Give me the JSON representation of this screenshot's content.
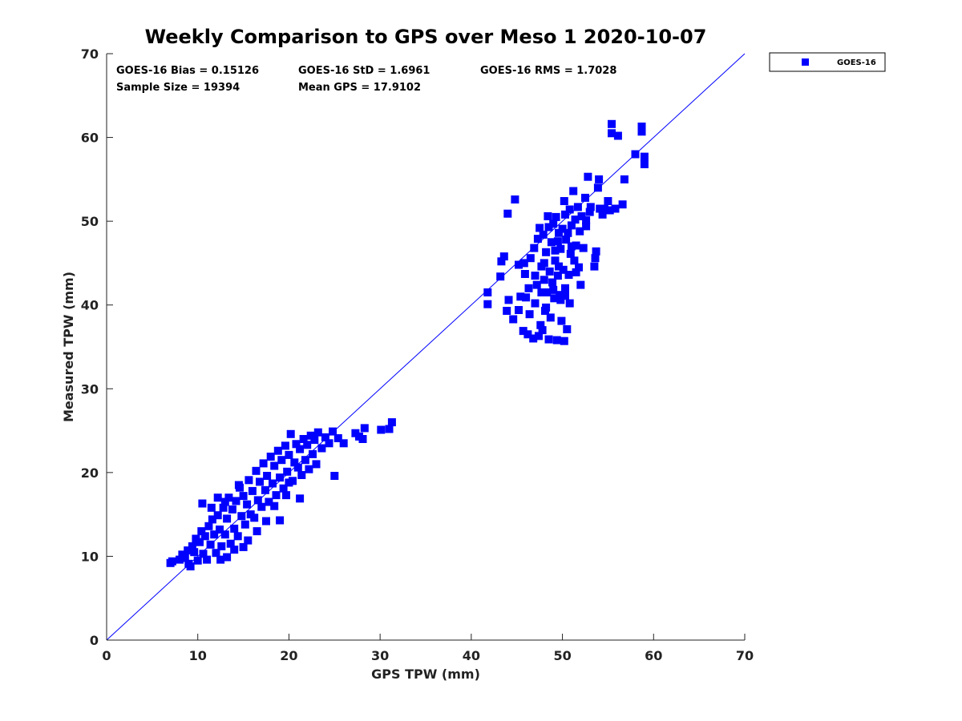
{
  "chart_data": {
    "type": "scatter",
    "title": "Weekly Comparison to GPS over Meso 1 2020-10-07",
    "xlabel": "GPS TPW (mm)",
    "ylabel": "Measured TPW (mm)",
    "xlim": [
      0,
      70
    ],
    "ylim": [
      0,
      70
    ],
    "xticks": [
      "0",
      "10",
      "20",
      "30",
      "40",
      "50",
      "60",
      "70"
    ],
    "yticks": [
      "0",
      "10",
      "20",
      "30",
      "40",
      "50",
      "60",
      "70"
    ],
    "grid": false,
    "legend_position": "outside top-right",
    "reference_line": {
      "x": [
        0,
        70
      ],
      "y": [
        0,
        70
      ],
      "color": "#0000ff"
    },
    "stats": [
      "GOES-16 Bias = 0.15126",
      "GOES-16 StD = 1.6961",
      "GOES-16 RMS = 1.7028",
      "Sample Size = 19394",
      "Mean GPS = 17.9102"
    ],
    "series": [
      {
        "name": "GOES-16",
        "color": "#0000ff",
        "marker": "square",
        "points": [
          [
            7,
            9.2
          ],
          [
            7.2,
            9.4
          ],
          [
            8,
            9.6
          ],
          [
            8.3,
            10.2
          ],
          [
            8.6,
            9.8
          ],
          [
            8.9,
            10.7
          ],
          [
            9,
            9.1
          ],
          [
            9.2,
            8.8
          ],
          [
            9.4,
            11.2
          ],
          [
            9.6,
            10.5
          ],
          [
            9.8,
            12.1
          ],
          [
            10,
            9.5
          ],
          [
            10.2,
            11.7
          ],
          [
            10.4,
            13
          ],
          [
            10.6,
            10.3
          ],
          [
            10.8,
            12.4
          ],
          [
            11,
            9.6
          ],
          [
            11.2,
            13.6
          ],
          [
            11.4,
            11.4
          ],
          [
            11.6,
            14.4
          ],
          [
            11.8,
            12.6
          ],
          [
            12,
            10.4
          ],
          [
            12.2,
            14.9
          ],
          [
            12.4,
            13.2
          ],
          [
            12.6,
            11.2
          ],
          [
            12.8,
            15.8
          ],
          [
            13,
            12.6
          ],
          [
            13.2,
            14.5
          ],
          [
            13.4,
            17
          ],
          [
            13.6,
            11.5
          ],
          [
            13.8,
            15.6
          ],
          [
            14,
            13.3
          ],
          [
            14.2,
            16.6
          ],
          [
            14.4,
            12.4
          ],
          [
            14.6,
            18.2
          ],
          [
            14.8,
            14.8
          ],
          [
            15,
            17.2
          ],
          [
            15.2,
            13.8
          ],
          [
            15.4,
            16.2
          ],
          [
            15.6,
            19.1
          ],
          [
            15.8,
            15
          ],
          [
            16,
            17.8
          ],
          [
            16.2,
            14.6
          ],
          [
            16.4,
            20.2
          ],
          [
            16.6,
            16.7
          ],
          [
            16.8,
            18.9
          ],
          [
            17,
            15.9
          ],
          [
            17.2,
            21.1
          ],
          [
            17.4,
            17.9
          ],
          [
            17.6,
            19.6
          ],
          [
            17.8,
            16.5
          ],
          [
            18,
            21.9
          ],
          [
            18.2,
            18.7
          ],
          [
            18.4,
            20.8
          ],
          [
            18.6,
            17.3
          ],
          [
            18.8,
            22.6
          ],
          [
            19,
            19.4
          ],
          [
            19.2,
            21.5
          ],
          [
            19.4,
            18.1
          ],
          [
            19.6,
            23.2
          ],
          [
            19.8,
            20.1
          ],
          [
            20,
            22.1
          ],
          [
            20.2,
            24.6
          ],
          [
            20.4,
            19
          ],
          [
            20.6,
            21.2
          ],
          [
            20.8,
            23.4
          ],
          [
            21,
            20.6
          ],
          [
            21.2,
            22.8
          ],
          [
            21.4,
            19.7
          ],
          [
            21.6,
            24
          ],
          [
            21.8,
            21.5
          ],
          [
            22,
            23.3
          ],
          [
            22.2,
            20.4
          ],
          [
            22.4,
            24.4
          ],
          [
            22.6,
            22.2
          ],
          [
            22.8,
            23.9
          ],
          [
            23,
            21
          ],
          [
            23.2,
            24.8
          ],
          [
            23.6,
            22.9
          ],
          [
            24,
            24.2
          ],
          [
            24.4,
            23.5
          ],
          [
            24.8,
            24.9
          ],
          [
            25,
            19.6
          ],
          [
            25.4,
            24.1
          ],
          [
            26,
            23.5
          ],
          [
            27.3,
            24.7
          ],
          [
            27.7,
            24.3
          ],
          [
            28.3,
            25.3
          ],
          [
            28.1,
            24
          ],
          [
            30.1,
            25.1
          ],
          [
            31,
            25.2
          ],
          [
            31.3,
            26
          ],
          [
            10.5,
            16.3
          ],
          [
            11.5,
            15.8
          ],
          [
            12.2,
            17
          ],
          [
            14.5,
            18.5
          ],
          [
            13,
            16.5
          ],
          [
            12.5,
            9.6
          ],
          [
            14,
            10.8
          ],
          [
            15.5,
            11.9
          ],
          [
            16.5,
            13
          ],
          [
            17.5,
            14.2
          ],
          [
            13.2,
            9.9
          ],
          [
            15,
            11.1
          ],
          [
            19,
            14.3
          ],
          [
            18.4,
            16
          ],
          [
            20,
            18.8
          ],
          [
            21.2,
            16.9
          ],
          [
            19.7,
            17.3
          ],
          [
            41.8,
            41.5
          ],
          [
            41.8,
            40.1
          ],
          [
            43.2,
            43.4
          ],
          [
            43.3,
            45.2
          ],
          [
            43.6,
            45.8
          ],
          [
            44.1,
            40.6
          ],
          [
            43.9,
            39.3
          ],
          [
            44,
            50.9
          ],
          [
            44.6,
            38.3
          ],
          [
            44.8,
            52.6
          ],
          [
            45.2,
            39.4
          ],
          [
            45.4,
            41
          ],
          [
            45.7,
            36.9
          ],
          [
            45.9,
            43.7
          ],
          [
            46.2,
            36.5
          ],
          [
            46.3,
            42
          ],
          [
            46.5,
            45.6
          ],
          [
            46.8,
            36
          ],
          [
            46.9,
            46.8
          ],
          [
            47,
            40.2
          ],
          [
            47.2,
            42.4
          ],
          [
            47.4,
            36.3
          ],
          [
            47.5,
            49.2
          ],
          [
            47.7,
            44.6
          ],
          [
            47.8,
            37
          ],
          [
            47.9,
            48.4
          ],
          [
            48,
            43
          ],
          [
            48.1,
            39.3
          ],
          [
            48.2,
            46.3
          ],
          [
            48.3,
            41.5
          ],
          [
            48.4,
            50.6
          ],
          [
            48.5,
            35.9
          ],
          [
            48.6,
            44
          ],
          [
            48.7,
            38.5
          ],
          [
            48.8,
            47.5
          ],
          [
            48.9,
            42.7
          ],
          [
            49,
            49.7
          ],
          [
            49.1,
            40.8
          ],
          [
            49.2,
            45.3
          ],
          [
            49.3,
            50.5
          ],
          [
            49.4,
            35.8
          ],
          [
            49.5,
            43.5
          ],
          [
            49.6,
            48.6
          ],
          [
            49.7,
            41.2
          ],
          [
            49.8,
            46.7
          ],
          [
            49.9,
            38.1
          ],
          [
            50,
            49.1
          ],
          [
            50.1,
            44.2
          ],
          [
            50.2,
            35.7
          ],
          [
            50.3,
            42
          ],
          [
            50.4,
            47.8
          ],
          [
            50.5,
            37.1
          ],
          [
            50.6,
            48.6
          ],
          [
            50.7,
            43.6
          ],
          [
            50.8,
            51.4
          ],
          [
            50.9,
            46.1
          ],
          [
            51,
            49.5
          ],
          [
            51.2,
            53.6
          ],
          [
            51.3,
            45.3
          ],
          [
            51.4,
            50.2
          ],
          [
            51.5,
            47.1
          ],
          [
            51.7,
            51.7
          ],
          [
            51.8,
            44.5
          ],
          [
            51.9,
            48.8
          ],
          [
            52,
            42.4
          ],
          [
            52.1,
            50.6
          ],
          [
            52.3,
            46.8
          ],
          [
            52.5,
            52.8
          ],
          [
            52.6,
            49.4
          ],
          [
            52.8,
            55.3
          ],
          [
            53.1,
            51.7
          ],
          [
            53.5,
            44.6
          ],
          [
            53.6,
            45.6
          ],
          [
            53.7,
            46.4
          ],
          [
            53.9,
            54
          ],
          [
            54,
            55
          ],
          [
            54.1,
            51.5
          ],
          [
            54.4,
            50.8
          ],
          [
            54.6,
            51.5
          ],
          [
            55,
            52.4
          ],
          [
            55.2,
            51.3
          ],
          [
            55.4,
            61.6
          ],
          [
            55.4,
            60.5
          ],
          [
            55.8,
            51.5
          ],
          [
            56.1,
            60.2
          ],
          [
            56.6,
            52
          ],
          [
            56.8,
            55
          ],
          [
            58,
            58
          ],
          [
            58.7,
            61.3
          ],
          [
            58.7,
            60.7
          ],
          [
            59,
            57.7
          ],
          [
            59,
            56.8
          ],
          [
            47.3,
            47.9
          ],
          [
            48.5,
            49.3
          ],
          [
            49.5,
            47.6
          ],
          [
            50.3,
            50.8
          ],
          [
            51,
            47
          ],
          [
            49.2,
            46.5
          ],
          [
            48,
            45
          ],
          [
            47.7,
            41.5
          ],
          [
            46.4,
            38.9
          ],
          [
            47.6,
            37.6
          ],
          [
            50.8,
            40.2
          ],
          [
            50.3,
            41.1
          ],
          [
            49.8,
            40.6
          ],
          [
            49.6,
            44.6
          ],
          [
            49,
            41.8
          ],
          [
            48.2,
            39.7
          ],
          [
            46,
            40.9
          ],
          [
            45.2,
            44.8
          ],
          [
            45.8,
            45
          ],
          [
            47,
            43.5
          ],
          [
            51.5,
            43.9
          ],
          [
            52.6,
            50.1
          ],
          [
            53,
            51.1
          ],
          [
            50.2,
            52.4
          ]
        ]
      }
    ]
  }
}
